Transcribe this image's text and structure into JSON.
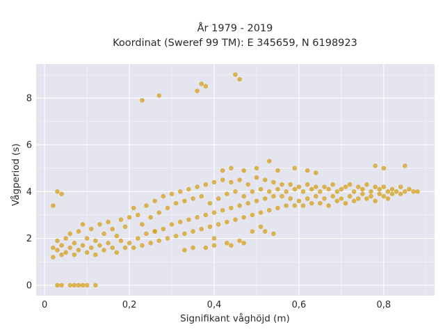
{
  "chart_data": {
    "type": "scatter",
    "title": "År 1979 - 2019",
    "subtitle": "Koordinat (Sweref 99 TM): E 345659, N 6198923",
    "xlabel": "Signifikant våghöjd (m)",
    "ylabel": "Vågperiod (s)",
    "xlim": [
      -0.02,
      0.92
    ],
    "ylim": [
      -0.45,
      9.45
    ],
    "xticks": [
      0,
      0.2,
      0.4,
      0.6,
      0.8
    ],
    "xtick_labels": [
      "0",
      "0,2",
      "0,4",
      "0,6",
      "0,8"
    ],
    "yticks": [
      0,
      2,
      4,
      6,
      8
    ],
    "ytick_labels": [
      "0",
      "2",
      "4",
      "6",
      "8"
    ],
    "grid": true,
    "colors": {
      "marker": "#d4a017",
      "plot_bg": "#e5e5ef",
      "grid": "#ffffff"
    },
    "series": [
      {
        "points": [
          [
            0.02,
            1.6
          ],
          [
            0.02,
            1.2
          ],
          [
            0.03,
            1.5
          ],
          [
            0.03,
            1.9
          ],
          [
            0.04,
            1.3
          ],
          [
            0.04,
            1.7
          ],
          [
            0.05,
            1.4
          ],
          [
            0.05,
            2.0
          ],
          [
            0.06,
            1.6
          ],
          [
            0.06,
            2.2
          ],
          [
            0.07,
            1.3
          ],
          [
            0.07,
            1.8
          ],
          [
            0.08,
            1.5
          ],
          [
            0.08,
            2.3
          ],
          [
            0.09,
            1.7
          ],
          [
            0.09,
            2.6
          ],
          [
            0.1,
            1.4
          ],
          [
            0.1,
            2.0
          ],
          [
            0.11,
            1.6
          ],
          [
            0.11,
            2.4
          ],
          [
            0.12,
            1.3
          ],
          [
            0.12,
            1.9
          ],
          [
            0.13,
            1.7
          ],
          [
            0.13,
            2.6
          ],
          [
            0.14,
            1.5
          ],
          [
            0.14,
            2.2
          ],
          [
            0.15,
            1.8
          ],
          [
            0.15,
            2.7
          ],
          [
            0.16,
            1.6
          ],
          [
            0.16,
            2.4
          ],
          [
            0.17,
            1.4
          ],
          [
            0.17,
            2.1
          ],
          [
            0.18,
            1.9
          ],
          [
            0.18,
            2.8
          ],
          [
            0.19,
            1.6
          ],
          [
            0.19,
            2.5
          ],
          [
            0.2,
            1.8
          ],
          [
            0.2,
            2.9
          ],
          [
            0.21,
            1.6
          ],
          [
            0.21,
            3.3
          ],
          [
            0.22,
            2.0
          ],
          [
            0.22,
            3.0
          ],
          [
            0.23,
            1.7
          ],
          [
            0.23,
            2.6
          ],
          [
            0.24,
            2.2
          ],
          [
            0.24,
            3.4
          ],
          [
            0.25,
            1.8
          ],
          [
            0.25,
            2.9
          ],
          [
            0.26,
            2.3
          ],
          [
            0.26,
            3.6
          ],
          [
            0.27,
            1.9
          ],
          [
            0.27,
            3.1
          ],
          [
            0.28,
            2.4
          ],
          [
            0.28,
            3.8
          ],
          [
            0.29,
            2.0
          ],
          [
            0.29,
            3.3
          ],
          [
            0.3,
            2.6
          ],
          [
            0.3,
            3.9
          ],
          [
            0.31,
            2.1
          ],
          [
            0.31,
            3.5
          ],
          [
            0.32,
            2.7
          ],
          [
            0.32,
            4.0
          ],
          [
            0.33,
            2.2
          ],
          [
            0.33,
            3.6
          ],
          [
            0.34,
            2.8
          ],
          [
            0.34,
            4.1
          ],
          [
            0.35,
            2.3
          ],
          [
            0.35,
            3.7
          ],
          [
            0.36,
            2.9
          ],
          [
            0.36,
            4.2
          ],
          [
            0.37,
            2.4
          ],
          [
            0.37,
            3.8
          ],
          [
            0.38,
            3.0
          ],
          [
            0.38,
            4.3
          ],
          [
            0.39,
            2.5
          ],
          [
            0.39,
            3.5
          ],
          [
            0.4,
            3.1
          ],
          [
            0.4,
            4.4
          ],
          [
            0.41,
            2.6
          ],
          [
            0.41,
            3.7
          ],
          [
            0.42,
            3.2
          ],
          [
            0.42,
            4.5
          ],
          [
            0.43,
            2.7
          ],
          [
            0.43,
            3.9
          ],
          [
            0.44,
            3.3
          ],
          [
            0.44,
            4.4
          ],
          [
            0.45,
            2.8
          ],
          [
            0.45,
            4.0
          ],
          [
            0.46,
            3.4
          ],
          [
            0.46,
            4.5
          ],
          [
            0.47,
            2.9
          ],
          [
            0.47,
            3.8
          ],
          [
            0.48,
            3.5
          ],
          [
            0.48,
            4.3
          ],
          [
            0.49,
            3.0
          ],
          [
            0.49,
            4.0
          ],
          [
            0.5,
            3.6
          ],
          [
            0.5,
            4.6
          ],
          [
            0.51,
            3.1
          ],
          [
            0.51,
            4.1
          ],
          [
            0.52,
            3.7
          ],
          [
            0.52,
            4.5
          ],
          [
            0.53,
            3.2
          ],
          [
            0.53,
            4.0
          ],
          [
            0.54,
            3.8
          ],
          [
            0.54,
            4.4
          ],
          [
            0.55,
            3.3
          ],
          [
            0.55,
            4.1
          ],
          [
            0.56,
            3.8
          ],
          [
            0.56,
            4.3
          ],
          [
            0.57,
            3.4
          ],
          [
            0.57,
            4.0
          ],
          [
            0.58,
            3.7
          ],
          [
            0.58,
            4.3
          ],
          [
            0.59,
            3.4
          ],
          [
            0.59,
            4.1
          ],
          [
            0.6,
            3.6
          ],
          [
            0.6,
            4.2
          ],
          [
            0.61,
            3.4
          ],
          [
            0.61,
            4.0
          ],
          [
            0.62,
            3.7
          ],
          [
            0.62,
            4.3
          ],
          [
            0.63,
            3.5
          ],
          [
            0.63,
            4.1
          ],
          [
            0.64,
            3.8
          ],
          [
            0.64,
            4.2
          ],
          [
            0.65,
            3.5
          ],
          [
            0.65,
            4.0
          ],
          [
            0.66,
            3.7
          ],
          [
            0.66,
            4.2
          ],
          [
            0.67,
            3.4
          ],
          [
            0.67,
            4.1
          ],
          [
            0.68,
            3.8
          ],
          [
            0.68,
            4.3
          ],
          [
            0.69,
            3.6
          ],
          [
            0.69,
            4.0
          ],
          [
            0.7,
            3.7
          ],
          [
            0.7,
            4.1
          ],
          [
            0.71,
            3.5
          ],
          [
            0.71,
            4.2
          ],
          [
            0.72,
            3.8
          ],
          [
            0.72,
            4.3
          ],
          [
            0.73,
            3.6
          ],
          [
            0.73,
            4.0
          ],
          [
            0.74,
            3.7
          ],
          [
            0.74,
            4.2
          ],
          [
            0.75,
            3.9
          ],
          [
            0.75,
            4.1
          ],
          [
            0.76,
            3.7
          ],
          [
            0.76,
            4.3
          ],
          [
            0.77,
            3.8
          ],
          [
            0.77,
            4.0
          ],
          [
            0.78,
            3.6
          ],
          [
            0.78,
            4.2
          ],
          [
            0.79,
            3.9
          ],
          [
            0.79,
            4.1
          ],
          [
            0.8,
            3.8
          ],
          [
            0.8,
            4.2
          ],
          [
            0.81,
            3.7
          ],
          [
            0.81,
            4.0
          ],
          [
            0.82,
            3.9
          ],
          [
            0.82,
            4.1
          ],
          [
            0.83,
            4.0
          ],
          [
            0.84,
            3.9
          ],
          [
            0.84,
            4.2
          ],
          [
            0.85,
            4.0
          ],
          [
            0.86,
            4.1
          ],
          [
            0.87,
            4.0
          ],
          [
            0.88,
            4.0
          ],
          [
            0.38,
            1.6
          ],
          [
            0.4,
            1.7
          ],
          [
            0.43,
            1.8
          ],
          [
            0.46,
            1.9
          ],
          [
            0.47,
            1.8
          ],
          [
            0.44,
            1.7
          ],
          [
            0.33,
            1.5
          ],
          [
            0.35,
            1.6
          ],
          [
            0.02,
            3.4
          ],
          [
            0.03,
            4.0
          ],
          [
            0.04,
            3.9
          ],
          [
            0.03,
            0.0
          ],
          [
            0.04,
            0.0
          ],
          [
            0.06,
            0.0
          ],
          [
            0.07,
            0.0
          ],
          [
            0.08,
            0.0
          ],
          [
            0.09,
            0.0
          ],
          [
            0.1,
            0.0
          ],
          [
            0.12,
            0.0
          ],
          [
            0.23,
            7.9
          ],
          [
            0.27,
            8.1
          ],
          [
            0.36,
            8.3
          ],
          [
            0.37,
            8.6
          ],
          [
            0.38,
            8.5
          ],
          [
            0.45,
            9.0
          ],
          [
            0.46,
            8.8
          ],
          [
            0.53,
            5.3
          ],
          [
            0.5,
            5.0
          ],
          [
            0.47,
            4.9
          ],
          [
            0.42,
            4.9
          ],
          [
            0.44,
            5.0
          ],
          [
            0.55,
            4.9
          ],
          [
            0.59,
            5.0
          ],
          [
            0.62,
            4.9
          ],
          [
            0.64,
            4.8
          ],
          [
            0.78,
            5.1
          ],
          [
            0.8,
            5.0
          ],
          [
            0.85,
            5.1
          ],
          [
            0.49,
            2.3
          ],
          [
            0.52,
            2.3
          ],
          [
            0.54,
            2.2
          ],
          [
            0.51,
            2.5
          ],
          [
            0.26,
            2.3
          ],
          [
            0.4,
            2.0
          ]
        ]
      }
    ]
  }
}
